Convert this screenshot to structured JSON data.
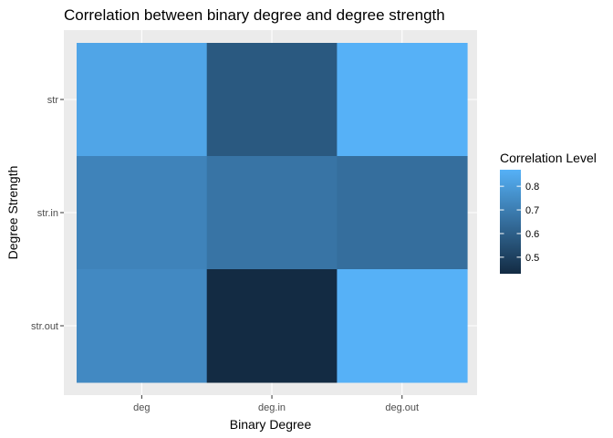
{
  "chart_data": {
    "type": "heatmap",
    "title": "Correlation between binary degree and degree strength",
    "xlabel": "Binary Degree",
    "ylabel": "Degree Strength",
    "x_categories": [
      "deg",
      "deg.in",
      "deg.out"
    ],
    "y_categories": [
      "str",
      "str.in",
      "str.out"
    ],
    "cells": [
      {
        "x": "deg",
        "y": "str",
        "value": 0.83
      },
      {
        "x": "deg.in",
        "y": "str",
        "value": 0.58
      },
      {
        "x": "deg.out",
        "y": "str",
        "value": 0.87
      },
      {
        "x": "deg",
        "y": "str.in",
        "value": 0.72
      },
      {
        "x": "deg.in",
        "y": "str.in",
        "value": 0.67
      },
      {
        "x": "deg.out",
        "y": "str.in",
        "value": 0.65
      },
      {
        "x": "deg",
        "y": "str.out",
        "value": 0.74
      },
      {
        "x": "deg.in",
        "y": "str.out",
        "value": 0.43
      },
      {
        "x": "deg.out",
        "y": "str.out",
        "value": 0.87
      }
    ],
    "legend": {
      "title": "Correlation Level",
      "breaks": [
        0.5,
        0.6,
        0.7,
        0.8
      ],
      "break_labels": [
        "0.5",
        "0.6",
        "0.7",
        "0.8"
      ],
      "range": [
        0.43,
        0.87
      ],
      "low_color": "#132B43",
      "high_color": "#56B1F7",
      "placement": "right"
    },
    "panel_background": "#EBEBEB",
    "grid": true
  }
}
